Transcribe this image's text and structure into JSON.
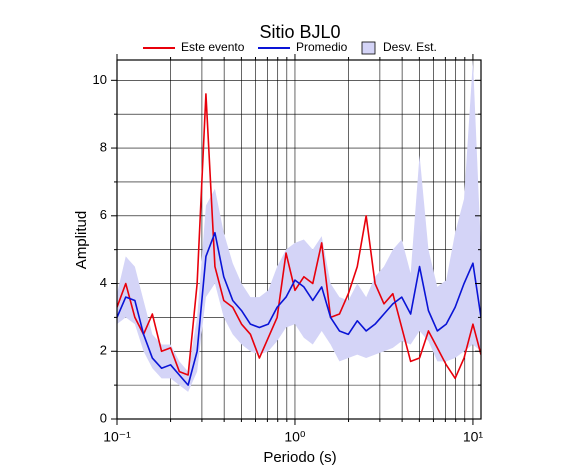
{
  "chart_data": {
    "type": "line",
    "title": "Sitio BJL0",
    "x_label": "Periodo (s)",
    "y_label": "Amplitud",
    "x_scale": "log",
    "grid": true,
    "legend": "top",
    "xlim": [
      0.1,
      11.1
    ],
    "ylim": [
      0,
      10.6
    ],
    "xticks": [
      {
        "value": 0.1,
        "label": "10⁻¹"
      },
      {
        "value": 1,
        "label": "10⁰"
      },
      {
        "value": 10,
        "label": "10¹"
      }
    ],
    "xminor": [
      0.2,
      0.3,
      0.4,
      0.5,
      0.6,
      0.7,
      0.8,
      0.9,
      2,
      3,
      4,
      5,
      6,
      7,
      8,
      9
    ],
    "yticks": [
      0,
      2,
      4,
      6,
      8,
      10
    ],
    "yminor": [
      1,
      3,
      5,
      7,
      9
    ],
    "x": [
      0.1,
      0.112,
      0.126,
      0.141,
      0.158,
      0.178,
      0.2,
      0.224,
      0.251,
      0.282,
      0.316,
      0.355,
      0.398,
      0.447,
      0.501,
      0.562,
      0.631,
      0.708,
      0.794,
      0.891,
      1.0,
      1.122,
      1.259,
      1.413,
      1.585,
      1.778,
      1.995,
      2.239,
      2.512,
      2.818,
      3.162,
      3.548,
      3.981,
      4.467,
      5.012,
      5.623,
      6.31,
      7.079,
      7.943,
      8.913,
      10,
      11.1
    ],
    "series": [
      {
        "name": "Este evento",
        "color": "#e8000b",
        "values": [
          3.3,
          4.0,
          3.0,
          2.5,
          3.1,
          2.0,
          2.1,
          1.4,
          1.3,
          4.0,
          9.6,
          4.5,
          3.5,
          3.3,
          2.8,
          2.5,
          1.8,
          2.4,
          3.0,
          4.9,
          3.8,
          4.2,
          4.0,
          5.2,
          3.0,
          3.1,
          3.7,
          4.5,
          6.0,
          4.0,
          3.4,
          3.7,
          2.7,
          1.7,
          1.8,
          2.6,
          2.1,
          1.6,
          1.2,
          1.8,
          2.8,
          1.9
        ]
      },
      {
        "name": "Promedio",
        "color": "#0a14d6",
        "values": [
          3.0,
          3.6,
          3.5,
          2.5,
          1.8,
          1.5,
          1.6,
          1.3,
          1.0,
          2.0,
          4.8,
          5.5,
          4.2,
          3.5,
          3.2,
          2.8,
          2.7,
          2.8,
          3.3,
          3.6,
          4.1,
          3.9,
          3.5,
          3.9,
          3.0,
          2.6,
          2.5,
          2.9,
          2.6,
          2.8,
          3.1,
          3.4,
          3.6,
          3.1,
          4.5,
          3.2,
          2.6,
          2.8,
          3.3,
          4.0,
          4.6,
          3.0
        ]
      },
      {
        "name": "Desv. Est.",
        "color": "#d4d4f7",
        "band": true,
        "lower": [
          2.8,
          3.0,
          2.8,
          2.0,
          1.5,
          1.2,
          1.2,
          1.0,
          0.8,
          1.4,
          3.6,
          4.0,
          3.0,
          2.5,
          2.2,
          2.0,
          1.9,
          2.0,
          2.3,
          2.7,
          2.8,
          2.4,
          2.2,
          2.6,
          2.2,
          1.7,
          1.8,
          1.9,
          1.8,
          1.9,
          2.0,
          2.1,
          2.3,
          2.2,
          2.6,
          2.3,
          1.7,
          1.7,
          1.8,
          2.0,
          2.2,
          2.0
        ],
        "upper": [
          3.7,
          4.8,
          4.5,
          3.5,
          2.5,
          2.2,
          2.2,
          1.7,
          1.4,
          3.0,
          6.3,
          6.8,
          5.5,
          4.6,
          4.0,
          3.6,
          3.6,
          3.8,
          4.5,
          5.0,
          5.2,
          5.3,
          5.0,
          5.4,
          4.0,
          3.6,
          3.5,
          4.0,
          3.6,
          4.2,
          4.5,
          5.0,
          5.3,
          4.3,
          7.8,
          5.0,
          3.9,
          4.1,
          5.5,
          6.5,
          10.6,
          5.0
        ]
      }
    ]
  }
}
